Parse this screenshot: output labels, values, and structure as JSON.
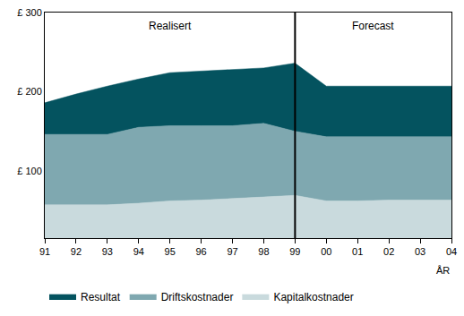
{
  "chart_data": {
    "type": "area",
    "stacked": true,
    "x_label": "ÅR",
    "categories": [
      "91",
      "92",
      "93",
      "94",
      "95",
      "96",
      "97",
      "98",
      "99",
      "00",
      "01",
      "02",
      "03",
      "04"
    ],
    "series": [
      {
        "name": "Kapitalkostnader",
        "color": "#c9dadd",
        "values": [
          57,
          57,
          57,
          59,
          62,
          63,
          65,
          67,
          69,
          62,
          62,
          63,
          63,
          63
        ]
      },
      {
        "name": "Driftskostnader",
        "color": "#7fa8b0",
        "values": [
          89,
          89,
          89,
          96,
          95,
          94,
          92,
          93,
          81,
          81,
          81,
          80,
          80,
          80
        ]
      },
      {
        "name": "Resultat",
        "color": "#04535f",
        "values": [
          40,
          51,
          61,
          61,
          67,
          69,
          71,
          70,
          86,
          64,
          64,
          64,
          64,
          64
        ]
      }
    ],
    "annotations": [
      {
        "text": "Realisert",
        "from": "91",
        "to": "99"
      },
      {
        "text": "Forecast",
        "from": "99",
        "to": "04"
      }
    ],
    "ylim": [
      15,
      300
    ],
    "yticks": [
      {
        "value": 100,
        "label": "£ 100"
      },
      {
        "value": 200,
        "label": "£ 200"
      },
      {
        "value": 300,
        "label": "£ 300"
      }
    ],
    "grid": false,
    "legend": "bottom"
  }
}
